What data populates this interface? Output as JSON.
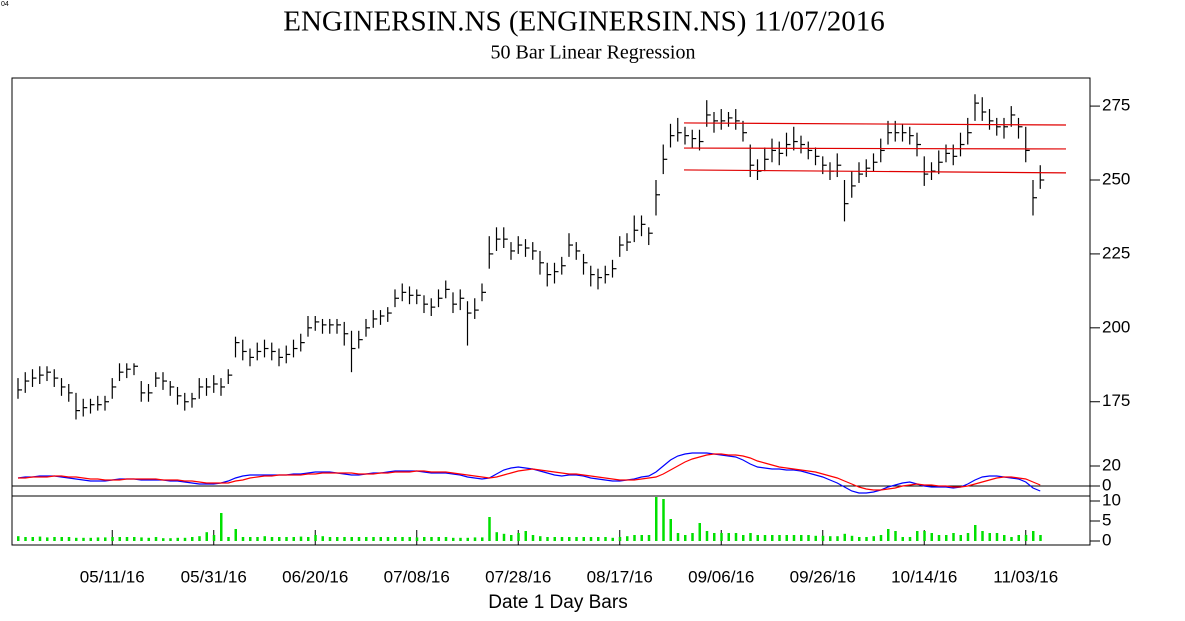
{
  "corner_text": "04",
  "chart_data": [
    {
      "type": "ohlc",
      "title": "ENGINERSIN.NS (ENGINERSIN.NS)  11/07/2016",
      "subtitle": "50 Bar Linear Regression",
      "x_label": "Date  1  Day Bars",
      "categories": [
        null,
        null,
        null,
        null,
        null,
        null,
        null,
        null,
        null,
        null,
        null,
        null,
        null,
        "05/11/16",
        null,
        null,
        null,
        null,
        null,
        null,
        null,
        null,
        null,
        null,
        null,
        null,
        null,
        "05/31/16",
        null,
        null,
        null,
        null,
        null,
        null,
        null,
        null,
        null,
        null,
        null,
        null,
        null,
        "06/20/16",
        null,
        null,
        null,
        null,
        null,
        null,
        null,
        null,
        null,
        null,
        null,
        null,
        null,
        "07/08/16",
        null,
        null,
        null,
        null,
        null,
        null,
        null,
        null,
        null,
        null,
        null,
        null,
        null,
        "07/28/16",
        null,
        null,
        null,
        null,
        null,
        null,
        null,
        null,
        null,
        null,
        null,
        null,
        null,
        "08/17/16",
        null,
        null,
        null,
        null,
        null,
        null,
        null,
        null,
        null,
        null,
        null,
        null,
        null,
        "09/06/16",
        null,
        null,
        null,
        null,
        null,
        null,
        null,
        null,
        null,
        null,
        null,
        null,
        null,
        "09/26/16",
        null,
        null,
        null,
        null,
        null,
        null,
        null,
        null,
        null,
        null,
        null,
        null,
        null,
        "10/14/16",
        null,
        null,
        null,
        null,
        null,
        null,
        null,
        null,
        null,
        null,
        null,
        null,
        null,
        "11/03/16",
        null,
        null
      ],
      "high": [
        183,
        185,
        186,
        187,
        187,
        186,
        183,
        181,
        178,
        176,
        176,
        177,
        177,
        183,
        188,
        188,
        188,
        182,
        181,
        185,
        185,
        182,
        180,
        178,
        178,
        183,
        183,
        184,
        183,
        186,
        197,
        196,
        193,
        195,
        196,
        195,
        193,
        194,
        196,
        198,
        204,
        204,
        203,
        203,
        203,
        202,
        199,
        199,
        203,
        206,
        206,
        207,
        213,
        215,
        214,
        213,
        211,
        210,
        213,
        216,
        212,
        213,
        209,
        210,
        215,
        231,
        234,
        234,
        229,
        231,
        230,
        229,
        226,
        222,
        222,
        224,
        232,
        229,
        225,
        221,
        220,
        221,
        223,
        231,
        232,
        238,
        238,
        234,
        250,
        262,
        269,
        271,
        268,
        267,
        267,
        277,
        273,
        274,
        273,
        274,
        270,
        262,
        257,
        261,
        264,
        263,
        266,
        268,
        265,
        263,
        261,
        258,
        256,
        259,
        250,
        253,
        256,
        257,
        259,
        264,
        270,
        270,
        269,
        268,
        266,
        258,
        256,
        260,
        262,
        262,
        266,
        271,
        279,
        278,
        274,
        271,
        271,
        275,
        271,
        268,
        250,
        255
      ],
      "low": [
        176,
        178,
        180,
        181,
        182,
        180,
        177,
        175,
        169,
        170,
        171,
        172,
        172,
        176,
        182,
        183,
        184,
        175,
        175,
        180,
        179,
        177,
        174,
        172,
        173,
        176,
        177,
        178,
        177,
        181,
        190,
        189,
        187,
        189,
        190,
        189,
        187,
        188,
        190,
        192,
        197,
        199,
        198,
        198,
        198,
        194,
        185,
        193,
        197,
        200,
        201,
        202,
        207,
        209,
        208,
        208,
        205,
        204,
        207,
        210,
        205,
        206,
        194,
        203,
        209,
        220,
        226,
        227,
        223,
        225,
        224,
        223,
        218,
        214,
        215,
        218,
        224,
        223,
        218,
        214,
        213,
        215,
        217,
        224,
        226,
        229,
        231,
        228,
        238,
        252,
        261,
        263,
        262,
        261,
        260,
        268,
        266,
        267,
        268,
        267,
        263,
        251,
        250,
        253,
        256,
        255,
        258,
        260,
        259,
        257,
        255,
        252,
        250,
        251,
        236,
        244,
        249,
        251,
        253,
        256,
        262,
        263,
        263,
        262,
        258,
        248,
        250,
        252,
        256,
        255,
        258,
        262,
        270,
        270,
        267,
        265,
        264,
        268,
        264,
        256,
        238,
        247
      ],
      "close": [
        179,
        182,
        183,
        184,
        185,
        183,
        180,
        178,
        172,
        173,
        174,
        174,
        175,
        180,
        185,
        186,
        187,
        178,
        178,
        183,
        182,
        180,
        177,
        175,
        176,
        180,
        180,
        181,
        180,
        184,
        195,
        192,
        190,
        192,
        193,
        192,
        190,
        191,
        193,
        195,
        200,
        202,
        201,
        201,
        201,
        198,
        193,
        196,
        200,
        203,
        204,
        205,
        210,
        212,
        211,
        211,
        208,
        207,
        210,
        213,
        208,
        210,
        205,
        206,
        212,
        225,
        230,
        230,
        226,
        228,
        227,
        226,
        222,
        218,
        219,
        221,
        228,
        226,
        222,
        218,
        217,
        218,
        220,
        228,
        229,
        233,
        235,
        232,
        245,
        257,
        265,
        266,
        265,
        264,
        263,
        272,
        270,
        270,
        271,
        270,
        266,
        255,
        253,
        257,
        260,
        259,
        262,
        263,
        262,
        260,
        258,
        255,
        253,
        255,
        242,
        248,
        252,
        254,
        256,
        260,
        266,
        266,
        266,
        265,
        262,
        252,
        253,
        256,
        259,
        258,
        262,
        266,
        276,
        273,
        270,
        268,
        268,
        272,
        268,
        260,
        244,
        250
      ],
      "color": "#000000",
      "regression_lines": [
        {
          "color": "#e00000",
          "values": [
            269.3,
            268.6
          ]
        },
        {
          "color": "#e00000",
          "values": [
            260.8,
            260.5
          ]
        },
        {
          "color": "#e00000",
          "values": [
            253.4,
            252.4
          ]
        }
      ],
      "ylim": [
        158,
        284.5
      ],
      "yticks": [
        175,
        200,
        225,
        250,
        275
      ]
    },
    {
      "type": "line",
      "series": [
        {
          "color": "#0000ff",
          "values": [
            8,
            9,
            9,
            10,
            10,
            10,
            9,
            8,
            7,
            6,
            5,
            5,
            5,
            6,
            7,
            7,
            7,
            6,
            6,
            6,
            6,
            5,
            5,
            4,
            3,
            2,
            2,
            2,
            3,
            5,
            8,
            10,
            11,
            11,
            11,
            11,
            11,
            11,
            12,
            12,
            13,
            14,
            14,
            14,
            13,
            12,
            11,
            11,
            12,
            13,
            13,
            14,
            15,
            15,
            15,
            15,
            14,
            13,
            13,
            13,
            12,
            11,
            9,
            8,
            7,
            8,
            12,
            16,
            18,
            19,
            18,
            17,
            15,
            13,
            11,
            10,
            11,
            11,
            10,
            8,
            7,
            6,
            5,
            5,
            6,
            7,
            9,
            10,
            14,
            20,
            26,
            30,
            32,
            33,
            33,
            33,
            32,
            31,
            30,
            29,
            26,
            22,
            19,
            18,
            17,
            17,
            16,
            16,
            15,
            13,
            11,
            9,
            6,
            3,
            -1,
            -5,
            -7,
            -7,
            -6,
            -4,
            -1,
            1,
            3,
            4,
            2,
            0,
            -1,
            -1,
            -1,
            -2,
            -1,
            2,
            6,
            9,
            10,
            10,
            9,
            8,
            7,
            4,
            -2,
            -5
          ]
        },
        {
          "color": "#ff0000",
          "values": [
            8,
            8,
            9,
            9,
            9,
            10,
            10,
            9,
            9,
            8,
            7,
            7,
            6,
            6,
            6,
            7,
            7,
            7,
            7,
            7,
            6,
            6,
            6,
            5,
            5,
            4,
            3,
            3,
            3,
            3,
            5,
            6,
            8,
            9,
            10,
            10,
            11,
            11,
            11,
            11,
            12,
            12,
            13,
            13,
            13,
            13,
            13,
            12,
            12,
            12,
            13,
            13,
            14,
            14,
            14,
            15,
            15,
            14,
            14,
            14,
            13,
            12,
            11,
            10,
            9,
            8,
            9,
            11,
            13,
            15,
            16,
            17,
            16,
            15,
            14,
            13,
            12,
            12,
            11,
            10,
            9,
            8,
            7,
            6,
            6,
            6,
            7,
            8,
            9,
            12,
            16,
            20,
            24,
            27,
            29,
            31,
            32,
            32,
            31,
            31,
            30,
            28,
            25,
            23,
            21,
            19,
            18,
            17,
            16,
            15,
            14,
            12,
            10,
            8,
            5,
            2,
            -1,
            -3,
            -4,
            -4,
            -3,
            -2,
            0,
            1,
            2,
            1,
            1,
            0,
            0,
            -1,
            -1,
            0,
            2,
            4,
            6,
            8,
            9,
            9,
            8,
            7,
            4,
            1
          ]
        }
      ],
      "zero_line": 0,
      "ylim": [
        -10,
        34
      ],
      "yticks": [
        20,
        0
      ]
    },
    {
      "type": "bar",
      "values": [
        1.2,
        1,
        1,
        1.1,
        0.9,
        1,
        1,
        1,
        0.8,
        0.8,
        0.8,
        0.9,
        0.9,
        1,
        1,
        1,
        1,
        0.9,
        0.8,
        1,
        0.7,
        0.7,
        0.8,
        0.8,
        1,
        1.2,
        2.2,
        1.5,
        7,
        1,
        3,
        1,
        1,
        1,
        1.2,
        1,
        1,
        1,
        1,
        1.1,
        1,
        1.5,
        1.2,
        1,
        1,
        1,
        1,
        1,
        1,
        1,
        1,
        1,
        1,
        1,
        1,
        0.9,
        1,
        1,
        1,
        1,
        0.8,
        0.8,
        0.8,
        0.9,
        0.9,
        6,
        2.2,
        1.8,
        1.5,
        2,
        2.5,
        1.5,
        1.2,
        1,
        1,
        1,
        1,
        1,
        1,
        1,
        1,
        1,
        0.8,
        1,
        1.2,
        1.5,
        1.5,
        1.5,
        11,
        10.5,
        5.5,
        2,
        1.5,
        2,
        4.5,
        2.5,
        2,
        2,
        2,
        2,
        1.5,
        2,
        1.5,
        1.5,
        1.5,
        1.5,
        1.5,
        1.5,
        1.5,
        1.5,
        1.3,
        1.3,
        1.2,
        1.2,
        1.8,
        1.3,
        1,
        1,
        1.2,
        1.5,
        3,
        2.5,
        1,
        1,
        2.5,
        2.5,
        2,
        1.5,
        1.5,
        2,
        1.5,
        2,
        4,
        2.5,
        2,
        2,
        1.5,
        1,
        1.5,
        1.5,
        2.5,
        1.5
      ],
      "color": "#00e000",
      "ylim": [
        0,
        11.25
      ],
      "yticks": [
        10,
        5,
        0
      ]
    }
  ]
}
